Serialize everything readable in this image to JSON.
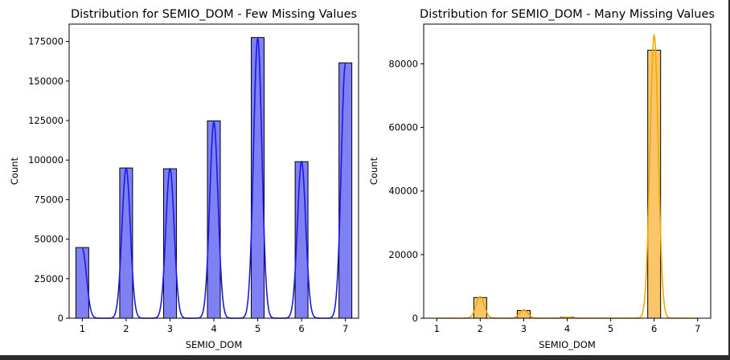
{
  "chart_data": [
    {
      "type": "bar",
      "title": "Distribution for SEMIO_DOM - Few Missing Values",
      "xlabel": "SEMIO_DOM",
      "ylabel": "Count",
      "xlim": [
        0.7,
        7.3
      ],
      "ylim": [
        0,
        186000
      ],
      "xticks": [
        1,
        2,
        3,
        4,
        5,
        6,
        7
      ],
      "yticks": [
        0,
        25000,
        50000,
        75000,
        100000,
        125000,
        150000,
        175000
      ],
      "x": [
        1,
        2,
        3,
        4,
        5,
        6,
        7
      ],
      "values": [
        44700,
        95000,
        94500,
        124800,
        177500,
        99000,
        161500
      ],
      "kde_peaks": [
        44000,
        95000,
        94500,
        124000,
        177000,
        99000,
        161000
      ],
      "colors": {
        "bar": "#8080f5",
        "line": "#1a1ae6",
        "edge": "#000000"
      },
      "grid": false
    },
    {
      "type": "bar",
      "title": "Distribution for SEMIO_DOM - Many Missing Values",
      "xlabel": "SEMIO_DOM",
      "ylabel": "Count",
      "xlim": [
        0.7,
        7.3
      ],
      "ylim": [
        0,
        92500
      ],
      "xticks": [
        1,
        2,
        3,
        4,
        5,
        6,
        7
      ],
      "yticks": [
        0,
        20000,
        40000,
        60000,
        80000
      ],
      "x": [
        2,
        3,
        4,
        6
      ],
      "values": [
        6500,
        2400,
        300,
        84300
      ],
      "kde_peaks": [
        6800,
        2600,
        300,
        89000
      ],
      "colors": {
        "bar": "#fbc56a",
        "line": "#f5a800",
        "edge": "#000000"
      },
      "grid": false
    }
  ]
}
